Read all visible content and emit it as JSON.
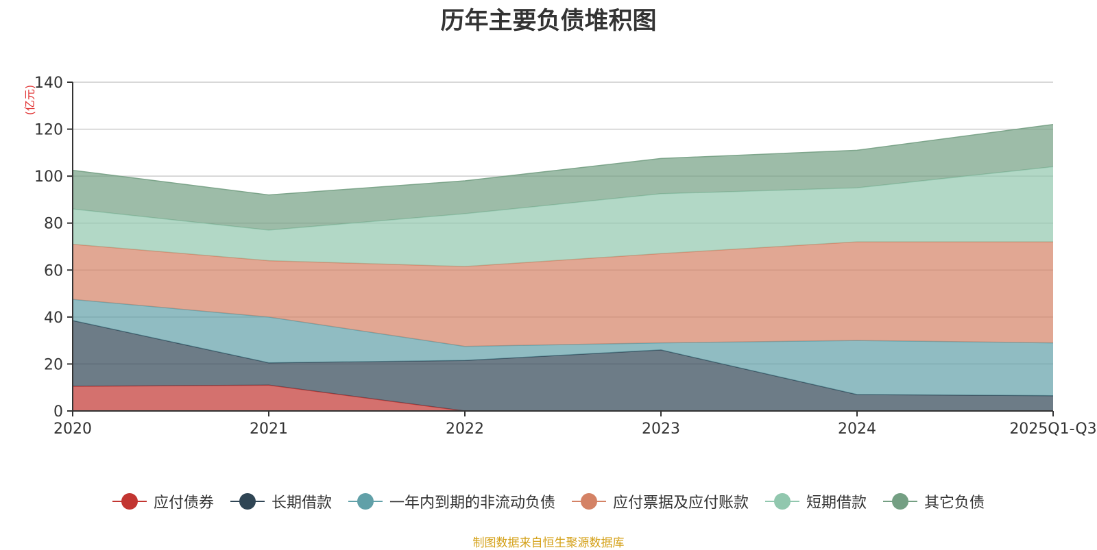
{
  "chart_data": {
    "type": "area",
    "stacked": true,
    "title": "历年主要负债堆积图",
    "ylabel": "(亿元)",
    "xlabel": "",
    "categories": [
      "2020",
      "2021",
      "2022",
      "2023",
      "2024",
      "2025Q1-Q3"
    ],
    "ylim": [
      0,
      140
    ],
    "yticks": [
      0,
      20,
      40,
      60,
      80,
      100,
      120,
      140
    ],
    "grid": true,
    "legend_position": "bottom",
    "series": [
      {
        "name": "应付债券",
        "color": "#c23531",
        "values": [
          10.5,
          11,
          0,
          0,
          0,
          0
        ]
      },
      {
        "name": "长期借款",
        "color": "#2f4554",
        "values": [
          28,
          9.5,
          21.5,
          26,
          7,
          6.5
        ]
      },
      {
        "name": "一年内到期的非流动负债",
        "color": "#61a0a8",
        "values": [
          9,
          19.5,
          6,
          3,
          23,
          22.5
        ]
      },
      {
        "name": "应付票据及应付账款",
        "color": "#d48265",
        "values": [
          23.5,
          24,
          34,
          38,
          42,
          43
        ]
      },
      {
        "name": "短期借款",
        "color": "#91c7ae",
        "values": [
          15,
          13,
          22.5,
          25.5,
          23,
          32
        ]
      },
      {
        "name": "其它负债",
        "color": "#749f83",
        "values": [
          16.5,
          15,
          14,
          15,
          16,
          18
        ]
      }
    ]
  },
  "source_note": "制图数据来自恒生聚源数据库"
}
